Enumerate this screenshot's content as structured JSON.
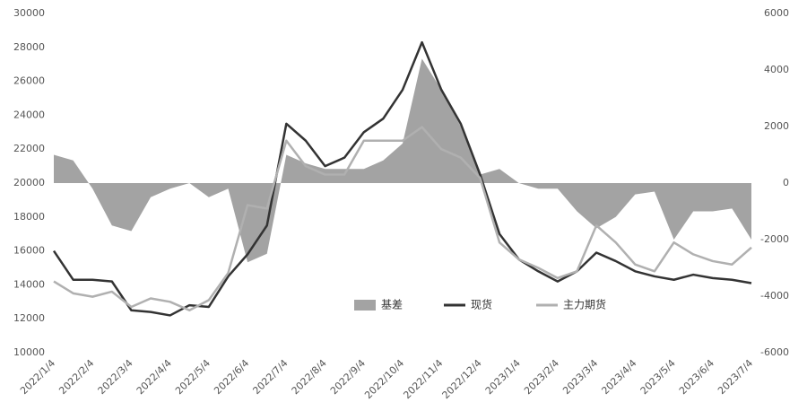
{
  "chart_data": {
    "type": "line",
    "categories": [
      "2022/1/4",
      null,
      "2022/2/4",
      null,
      "2022/3/4",
      null,
      "2022/4/4",
      null,
      "2022/5/4",
      null,
      "2022/6/4",
      null,
      "2022/7/4",
      null,
      "2022/8/4",
      null,
      "2022/9/4",
      null,
      "2022/10/4",
      null,
      "2022/11/4",
      null,
      "2022/12/4",
      null,
      "2023/1/4",
      null,
      "2023/2/4",
      null,
      "2023/3/4",
      null,
      "2023/4/4",
      null,
      "2023/5/4",
      null,
      "2023/6/4",
      null,
      "2023/7/4"
    ],
    "series": [
      {
        "name": "基差",
        "color": "#a3a3a3",
        "kind": "area",
        "axis": "y2",
        "values": [
          1000,
          800,
          -200,
          -1500,
          -1700,
          -500,
          -200,
          0,
          -500,
          -200,
          -2800,
          -2500,
          1000,
          700,
          500,
          500,
          500,
          800,
          1400,
          4400,
          3300,
          2000,
          300,
          500,
          0,
          -200,
          -200,
          -1000,
          -1600,
          -1200,
          -400,
          -300,
          -2000,
          -1000,
          -1000,
          -900,
          -2000
        ]
      },
      {
        "name": "现货",
        "color": "#333333",
        "kind": "line",
        "values": [
          16000,
          14300,
          14300,
          14200,
          12500,
          12400,
          12200,
          12800,
          12700,
          14500,
          15800,
          17500,
          23500,
          22500,
          21000,
          21500,
          23000,
          23800,
          25500,
          28300,
          25500,
          23500,
          20500,
          17000,
          15500,
          14800,
          14200,
          14800,
          15900,
          15400,
          14800,
          14500,
          14300,
          14600,
          14400,
          14300,
          14100
        ]
      },
      {
        "name": "主力期货",
        "color": "#b0b0b0",
        "kind": "line",
        "values": [
          14200,
          13500,
          13300,
          13600,
          12700,
          13200,
          13000,
          12500,
          13100,
          14700,
          18700,
          18500,
          22500,
          21000,
          20500,
          20500,
          22500,
          22500,
          22500,
          23300,
          22000,
          21500,
          20300,
          16500,
          15500,
          15000,
          14400,
          14800,
          17500,
          16500,
          15200,
          14800,
          16500,
          15800,
          15400,
          15200,
          16200
        ]
      }
    ],
    "ylim": [
      10000,
      30000
    ],
    "yticks": [
      10000,
      12000,
      14000,
      16000,
      18000,
      20000,
      22000,
      24000,
      26000,
      28000,
      30000
    ],
    "y2lim": [
      -6000,
      6000
    ],
    "y2ticks": [
      -6000,
      -4000,
      -2000,
      0,
      2000,
      4000,
      6000
    ]
  }
}
